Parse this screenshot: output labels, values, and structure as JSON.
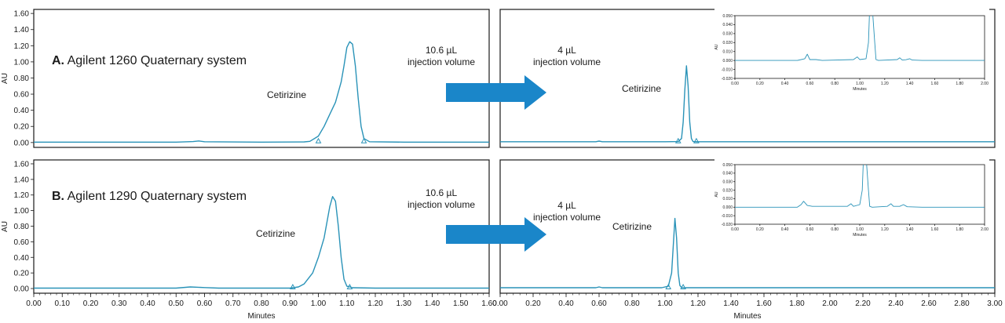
{
  "colors": {
    "trace": "#2a93b8",
    "arrow": "#1a86c9",
    "frame": "#1a1a1a",
    "text": "#1a1a1a"
  },
  "chart_data": [
    {
      "id": "A-left",
      "type": "line",
      "ylabel": "AU",
      "xlabel": "",
      "xlim": [
        0.0,
        1.6
      ],
      "ylim": [
        -0.06,
        1.65
      ],
      "yticks": [
        "0.00",
        "0.20",
        "0.40",
        "0.60",
        "0.80",
        "1.00",
        "1.20",
        "1.40",
        "1.60"
      ],
      "xticks": [],
      "x": [
        0.0,
        0.5,
        0.56,
        0.58,
        0.6,
        0.8,
        0.95,
        0.97,
        1.0,
        1.02,
        1.04,
        1.06,
        1.08,
        1.09,
        1.1,
        1.11,
        1.12,
        1.13,
        1.14,
        1.15,
        1.16,
        1.18,
        1.3,
        1.6
      ],
      "y": [
        0.005,
        0.005,
        0.012,
        0.02,
        0.01,
        0.005,
        0.008,
        0.015,
        0.08,
        0.2,
        0.35,
        0.5,
        0.75,
        0.95,
        1.18,
        1.25,
        1.22,
        0.95,
        0.55,
        0.2,
        0.05,
        0.01,
        0.005,
        0.005
      ],
      "markers": [
        1.0,
        1.16
      ],
      "annotations": {
        "heading_letter": "A.",
        "heading_text": "Agilent 1260 Quaternary system",
        "peak": "Cetirizine",
        "inj_value": "10.6 µL",
        "inj_text": "injection volume"
      }
    },
    {
      "id": "A-right",
      "type": "line",
      "ylabel": "",
      "xlabel": "",
      "xlim": [
        0.0,
        3.0
      ],
      "ylim": [
        -0.06,
        1.65
      ],
      "yticks": [],
      "xticks": [],
      "x": [
        0.0,
        0.58,
        0.6,
        0.62,
        1.0,
        1.08,
        1.1,
        1.11,
        1.12,
        1.13,
        1.14,
        1.15,
        1.16,
        1.17,
        1.2,
        3.0
      ],
      "y": [
        0.01,
        0.01,
        0.018,
        0.01,
        0.01,
        0.012,
        0.05,
        0.25,
        0.65,
        0.95,
        0.7,
        0.25,
        0.05,
        0.012,
        0.01,
        0.01
      ],
      "markers": [
        1.08,
        1.19
      ],
      "annotations": {
        "peak": "Cetirizine",
        "inj_value": "4 µL",
        "inj_text": "injection volume"
      }
    },
    {
      "id": "A-inset",
      "type": "line",
      "ylabel": "AU",
      "xlabel": "Minutes",
      "xlim": [
        0.0,
        2.0
      ],
      "ylim": [
        -0.02,
        0.05
      ],
      "yticks": [
        "-0.020",
        "-0.010",
        "0.000",
        "0.010",
        "0.020",
        "0.030",
        "0.040",
        "0.050"
      ],
      "xticks": [
        "0.00",
        "0.20",
        "0.40",
        "0.60",
        "0.80",
        "1.00",
        "1.20",
        "1.40",
        "1.60",
        "1.80",
        "2.00"
      ],
      "x": [
        0.0,
        0.5,
        0.56,
        0.58,
        0.6,
        0.65,
        0.7,
        0.95,
        0.98,
        1.0,
        1.05,
        1.07,
        1.08,
        1.1,
        1.12,
        1.13,
        1.15,
        1.3,
        1.32,
        1.34,
        1.37,
        1.4,
        1.42,
        1.5,
        2.0
      ],
      "y": [
        0.0,
        0.0,
        0.002,
        0.007,
        0.001,
        0.001,
        0.0,
        0.001,
        0.004,
        0.001,
        0.002,
        0.02,
        0.06,
        0.06,
        0.02,
        0.001,
        0.0,
        0.001,
        0.003,
        0.0005,
        0.0008,
        0.002,
        0.0005,
        0.0,
        0.0
      ],
      "markers": []
    },
    {
      "id": "B-left",
      "type": "line",
      "ylabel": "AU",
      "xlabel": "Minutes",
      "xlim": [
        0.0,
        1.6
      ],
      "ylim": [
        -0.06,
        1.65
      ],
      "yticks": [
        "0.00",
        "0.20",
        "0.40",
        "0.60",
        "0.80",
        "1.00",
        "1.20",
        "1.40",
        "1.60"
      ],
      "xticks": [
        "0.00",
        "0.10",
        "0.20",
        "0.30",
        "0.40",
        "0.50",
        "0.60",
        "0.70",
        "0.80",
        "0.90",
        "1.00",
        "1.10",
        "1.20",
        "1.30",
        "1.40",
        "1.50",
        "1.60"
      ],
      "x": [
        0.0,
        0.5,
        0.55,
        0.6,
        0.65,
        0.9,
        0.93,
        0.95,
        0.98,
        1.0,
        1.02,
        1.03,
        1.04,
        1.05,
        1.06,
        1.07,
        1.08,
        1.09,
        1.1,
        1.12,
        1.2,
        1.6
      ],
      "y": [
        0.005,
        0.005,
        0.02,
        0.012,
        0.005,
        0.005,
        0.02,
        0.06,
        0.2,
        0.4,
        0.65,
        0.85,
        1.05,
        1.18,
        1.12,
        0.8,
        0.4,
        0.12,
        0.03,
        0.01,
        0.005,
        0.005
      ],
      "markers": [
        0.91,
        1.11
      ],
      "annotations": {
        "heading_letter": "B.",
        "heading_text": "Agilent 1290 Quaternary system",
        "peak": "Cetirizine",
        "inj_value": "10.6 µL",
        "inj_text": "injection volume"
      }
    },
    {
      "id": "B-right",
      "type": "line",
      "ylabel": "",
      "xlabel": "Minutes",
      "xlim": [
        0.0,
        3.0
      ],
      "ylim": [
        -0.06,
        1.65
      ],
      "yticks": [],
      "xticks": [
        "0.00",
        "0.20",
        "0.40",
        "0.60",
        "0.80",
        "1.00",
        "1.20",
        "1.40",
        "1.60",
        "1.80",
        "2.00",
        "2.20",
        "2.40",
        "2.60",
        "2.80",
        "3.00"
      ],
      "x": [
        0.0,
        0.58,
        0.6,
        0.62,
        0.98,
        1.02,
        1.04,
        1.05,
        1.06,
        1.07,
        1.08,
        1.09,
        1.1,
        1.13,
        3.0
      ],
      "y": [
        0.01,
        0.01,
        0.02,
        0.01,
        0.01,
        0.03,
        0.2,
        0.55,
        0.9,
        0.65,
        0.2,
        0.04,
        0.012,
        0.01,
        0.01
      ],
      "markers": [
        1.02,
        1.11
      ],
      "annotations": {
        "peak": "Cetirizine",
        "inj_value": "4 µL",
        "inj_text": "injection volume"
      }
    },
    {
      "id": "B-inset",
      "type": "line",
      "ylabel": "AU",
      "xlabel": "Minutes",
      "xlim": [
        0.0,
        2.0
      ],
      "ylim": [
        -0.02,
        0.05
      ],
      "yticks": [
        "-0.020",
        "-0.010",
        "0.000",
        "0.010",
        "0.020",
        "0.030",
        "0.040",
        "0.050"
      ],
      "xticks": [
        "0.00",
        "0.20",
        "0.40",
        "0.60",
        "0.80",
        "1.00",
        "1.20",
        "1.40",
        "1.60",
        "1.80",
        "2.00"
      ],
      "x": [
        0.0,
        0.5,
        0.53,
        0.55,
        0.58,
        0.62,
        0.9,
        0.93,
        0.95,
        1.0,
        1.02,
        1.03,
        1.05,
        1.07,
        1.08,
        1.1,
        1.22,
        1.25,
        1.27,
        1.32,
        1.35,
        1.38,
        1.5,
        2.0
      ],
      "y": [
        0.0,
        0.0,
        0.003,
        0.007,
        0.002,
        0.001,
        0.001,
        0.004,
        0.001,
        0.003,
        0.02,
        0.06,
        0.06,
        0.02,
        0.001,
        0.0,
        0.001,
        0.004,
        0.001,
        0.001,
        0.003,
        0.0005,
        0.0,
        0.0
      ],
      "markers": []
    }
  ]
}
